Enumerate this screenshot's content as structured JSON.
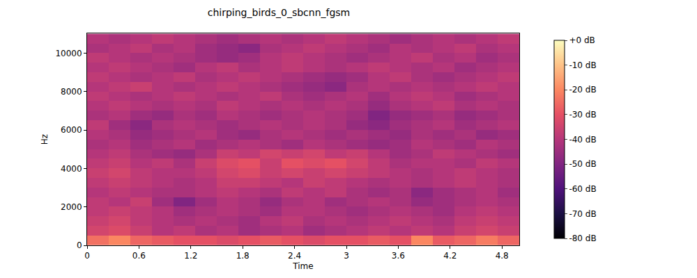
{
  "chart_data": {
    "type": "heatmap",
    "title": "chirping_birds_0_sbcnn_fgsm",
    "x_label": "Time",
    "y_label": "Hz",
    "xlim": [
      0,
      5
    ],
    "xticks": [
      0,
      0.6,
      1.2,
      1.8,
      2.4,
      3,
      3.6,
      4.2,
      4.8
    ],
    "ylim": [
      0,
      11025
    ],
    "yticks": [
      0,
      2000,
      4000,
      6000,
      8000,
      10000
    ],
    "x": [
      0.125,
      0.375,
      0.625,
      0.875,
      1.125,
      1.375,
      1.625,
      1.875,
      2.125,
      2.375,
      2.625,
      2.875,
      3.125,
      3.375,
      3.625,
      3.875,
      4.125,
      4.375,
      4.625,
      4.875
    ],
    "y": [
      250,
      750,
      1250,
      1750,
      2250,
      2750,
      3250,
      3750,
      4250,
      4750,
      5250,
      5750,
      6250,
      6750,
      7250,
      7750,
      8250,
      8750,
      9250,
      9750,
      10250,
      10750
    ],
    "cells": [
      [
        -24,
        -20,
        -26,
        -28,
        -30,
        -30,
        -32,
        -30,
        -28,
        -30,
        -32,
        -30,
        -30,
        -28,
        -30,
        -20,
        -28,
        -26,
        -22,
        -26
      ],
      [
        -34,
        -32,
        -36,
        -40,
        -38,
        -42,
        -40,
        -44,
        -42,
        -40,
        -44,
        -42,
        -40,
        -38,
        -40,
        -38,
        -40,
        -36,
        -34,
        -36
      ],
      [
        -36,
        -34,
        -38,
        -40,
        -42,
        -40,
        -42,
        -44,
        -40,
        -38,
        -42,
        -40,
        -42,
        -40,
        -38,
        -40,
        -42,
        -38,
        -36,
        -38
      ],
      [
        -38,
        -36,
        -38,
        -40,
        -44,
        -42,
        -40,
        -42,
        -44,
        -40,
        -40,
        -42,
        -44,
        -42,
        -40,
        -42,
        -44,
        -40,
        -38,
        -40
      ],
      [
        -38,
        -40,
        -36,
        -44,
        -50,
        -44,
        -40,
        -42,
        -46,
        -42,
        -40,
        -44,
        -42,
        -40,
        -42,
        -46,
        -44,
        -42,
        -40,
        -42
      ],
      [
        -40,
        -38,
        -40,
        -42,
        -42,
        -40,
        -38,
        -40,
        -42,
        -38,
        -40,
        -38,
        -42,
        -44,
        -42,
        -48,
        -44,
        -42,
        -40,
        -44
      ],
      [
        -38,
        -36,
        -38,
        -40,
        -42,
        -40,
        -36,
        -36,
        -38,
        -40,
        -36,
        -38,
        -40,
        -42,
        -40,
        -42,
        -40,
        -38,
        -40,
        -42
      ],
      [
        -36,
        -34,
        -38,
        -40,
        -40,
        -38,
        -34,
        -32,
        -36,
        -34,
        -36,
        -34,
        -36,
        -38,
        -40,
        -42,
        -40,
        -38,
        -40,
        -42
      ],
      [
        -38,
        -36,
        -40,
        -38,
        -42,
        -36,
        -32,
        -30,
        -36,
        -30,
        -32,
        -30,
        -34,
        -38,
        -42,
        -40,
        -40,
        -42,
        -38,
        -40
      ],
      [
        -40,
        -38,
        -42,
        -44,
        -46,
        -42,
        -36,
        -38,
        -34,
        -36,
        -34,
        -38,
        -36,
        -40,
        -44,
        -42,
        -38,
        -40,
        -42,
        -44
      ],
      [
        -42,
        -40,
        -44,
        -42,
        -40,
        -44,
        -42,
        -40,
        -42,
        -44,
        -40,
        -42,
        -44,
        -46,
        -44,
        -40,
        -42,
        -44,
        -40,
        -42
      ],
      [
        -40,
        -42,
        -46,
        -44,
        -42,
        -40,
        -44,
        -46,
        -42,
        -40,
        -42,
        -44,
        -42,
        -44,
        -46,
        -42,
        -44,
        -42,
        -46,
        -44
      ],
      [
        -38,
        -44,
        -48,
        -42,
        -40,
        -42,
        -44,
        -42,
        -40,
        -42,
        -40,
        -42,
        -46,
        -48,
        -44,
        -42,
        -40,
        -44,
        -42,
        -40
      ],
      [
        -42,
        -40,
        -44,
        -46,
        -42,
        -44,
        -40,
        -42,
        -44,
        -42,
        -40,
        -42,
        -44,
        -50,
        -46,
        -44,
        -42,
        -46,
        -44,
        -42
      ],
      [
        -40,
        -38,
        -40,
        -42,
        -40,
        -42,
        -38,
        -40,
        -42,
        -40,
        -42,
        -40,
        -42,
        -46,
        -42,
        -40,
        -38,
        -42,
        -40,
        -42
      ],
      [
        -38,
        -40,
        -42,
        -40,
        -38,
        -40,
        -42,
        -40,
        -38,
        -42,
        -44,
        -42,
        -40,
        -44,
        -40,
        -38,
        -40,
        -44,
        -42,
        -40
      ],
      [
        -40,
        -38,
        -36,
        -40,
        -42,
        -40,
        -38,
        -40,
        -42,
        -44,
        -46,
        -48,
        -42,
        -40,
        -42,
        -40,
        -42,
        -40,
        -38,
        -40
      ],
      [
        -38,
        -40,
        -42,
        -40,
        -38,
        -42,
        -40,
        -38,
        -40,
        -42,
        -44,
        -46,
        -44,
        -40,
        -38,
        -42,
        -44,
        -42,
        -40,
        -38
      ],
      [
        -40,
        -38,
        -40,
        -42,
        -44,
        -40,
        -38,
        -42,
        -40,
        -38,
        -40,
        -42,
        -40,
        -38,
        -40,
        -42,
        -40,
        -44,
        -42,
        -40
      ],
      [
        -38,
        -40,
        -42,
        -40,
        -42,
        -44,
        -46,
        -44,
        -40,
        -38,
        -40,
        -42,
        -44,
        -42,
        -40,
        -38,
        -42,
        -40,
        -44,
        -42
      ],
      [
        -42,
        -40,
        -38,
        -42,
        -40,
        -44,
        -46,
        -48,
        -42,
        -40,
        -38,
        -40,
        -42,
        -44,
        -40,
        -42,
        -40,
        -38,
        -42,
        -40
      ],
      [
        -40,
        -42,
        -40,
        -38,
        -40,
        -42,
        -44,
        -42,
        -40,
        -42,
        -40,
        -38,
        -40,
        -42,
        -44,
        -42,
        -40,
        -42,
        -40,
        -38
      ]
    ],
    "colorbar": {
      "range": [
        -80,
        0
      ],
      "ticks": [
        {
          "value": 0,
          "label": "+0 dB"
        },
        {
          "value": -10,
          "label": "-10 dB"
        },
        {
          "value": -20,
          "label": "-20 dB"
        },
        {
          "value": -30,
          "label": "-30 dB"
        },
        {
          "value": -40,
          "label": "-40 dB"
        },
        {
          "value": -50,
          "label": "-50 dB"
        },
        {
          "value": -60,
          "label": "-60 dB"
        },
        {
          "value": -70,
          "label": "-70 dB"
        },
        {
          "value": -80,
          "label": "-80 dB"
        }
      ]
    }
  }
}
